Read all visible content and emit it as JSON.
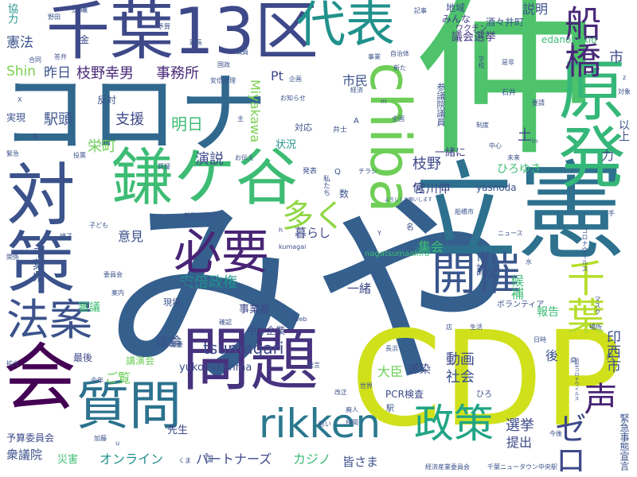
{
  "words": [
    {
      "text": "仲",
      "color": "#4ec36b",
      "weight": 99
    },
    {
      "text": "みや",
      "color": "#355f8d",
      "weight": 100
    },
    {
      "text": "CDP",
      "color": "#d0e11c",
      "weight": 90
    },
    {
      "text": "立憲",
      "color": "#2d718e",
      "weight": 92
    },
    {
      "text": "コロナ",
      "color": "#31688e",
      "weight": 88
    },
    {
      "text": "千葉13区",
      "color": "#3e4989",
      "weight": 80
    },
    {
      "text": "対策",
      "color": "#3b528b",
      "weight": 78
    },
    {
      "text": "鎌ケ谷",
      "color": "#3dbc74",
      "weight": 76
    },
    {
      "text": "代表",
      "color": "#21918c",
      "weight": 70
    },
    {
      "text": "原発",
      "color": "#35b779",
      "weight": 72
    },
    {
      "text": "会",
      "color": "#440154",
      "weight": 74
    },
    {
      "text": "問題",
      "color": "#46327e",
      "weight": 72
    },
    {
      "text": "質問",
      "color": "#2c728e",
      "weight": 66
    },
    {
      "text": "chiba",
      "color": "#6ece58",
      "weight": 62
    },
    {
      "text": "必要",
      "color": "#482475",
      "weight": 60
    },
    {
      "text": "開催",
      "color": "#39568c",
      "weight": 58
    },
    {
      "text": "法案",
      "color": "#3b528b",
      "weight": 54
    },
    {
      "text": "rikken",
      "color": "#2a788e",
      "weight": 54
    },
    {
      "text": "政策",
      "color": "#21a585",
      "weight": 52
    },
    {
      "text": "船橋",
      "color": "#482878",
      "weight": 46
    },
    {
      "text": "千葉",
      "color": "#b5de2b",
      "weight": 48
    },
    {
      "text": "多く",
      "color": "#8fd744",
      "weight": 44
    },
    {
      "text": "声",
      "color": "#482475",
      "weight": 44
    },
    {
      "text": "ゼロ",
      "color": "#3e4989",
      "weight": 40
    },
    {
      "text": "議会選挙",
      "color": "#453781",
      "weight": 14
    },
    {
      "text": "みんな",
      "color": "#424086",
      "weight": 12
    },
    {
      "text": "地域",
      "color": "#3b528b",
      "weight": 12
    },
    {
      "text": "酒々井町",
      "color": "#3b528b",
      "weight": 12
    },
    {
      "text": "edanoyukio",
      "color": "#3dbc74",
      "weight": 12
    },
    {
      "text": "ワクチン",
      "color": "#443a83",
      "weight": 10
    },
    {
      "text": "説明",
      "color": "#3b528b",
      "weight": 14
    },
    {
      "text": "市",
      "color": "#3e4989",
      "weight": 16
    },
    {
      "text": "憲法",
      "color": "#3b528b",
      "weight": 16
    },
    {
      "text": "協力",
      "color": "#21918c",
      "weight": 12
    },
    {
      "text": "Shin",
      "color": "#7ad151",
      "weight": 16
    },
    {
      "text": "昨日",
      "color": "#3b528b",
      "weight": 16
    },
    {
      "text": "枝野幸男",
      "color": "#482878",
      "weight": 18
    },
    {
      "text": "事務所",
      "color": "#482878",
      "weight": 18
    },
    {
      "text": "Pt",
      "color": "#3e4989",
      "weight": 14
    },
    {
      "text": "市民",
      "color": "#3b528b",
      "weight": 14
    },
    {
      "text": "Miyakawa",
      "color": "#7ad151",
      "weight": 16
    },
    {
      "text": "反対",
      "color": "#3b528b",
      "weight": 12
    },
    {
      "text": "駅頭",
      "color": "#3b528b",
      "weight": 18
    },
    {
      "text": "支援",
      "color": "#3e4989",
      "weight": 18
    },
    {
      "text": "明日",
      "color": "#3dbc74",
      "weight": 18
    },
    {
      "text": "栄町",
      "color": "#6ece58",
      "weight": 18
    },
    {
      "text": "演説",
      "color": "#3e4989",
      "weight": 18
    },
    {
      "text": "状況",
      "color": "#21918c",
      "weight": 12
    },
    {
      "text": "枝野",
      "color": "#3e4989",
      "weight": 18
    },
    {
      "text": "一緒に",
      "color": "#424086",
      "weight": 12
    },
    {
      "text": "宮川伸",
      "color": "#3e4989",
      "weight": 14
    },
    {
      "text": "yasnoda",
      "color": "#3b528b",
      "weight": 12
    },
    {
      "text": "ひろゆき",
      "color": "#3dbc74",
      "weight": 12
    },
    {
      "text": "以上",
      "color": "#3b528b",
      "weight": 12
    },
    {
      "text": "土",
      "color": "#3e4989",
      "weight": 18
    },
    {
      "text": "力",
      "color": "#3b528b",
      "weight": 16
    },
    {
      "text": "意見",
      "color": "#3b528b",
      "weight": 14
    },
    {
      "text": "安倍政権",
      "color": "#21918c",
      "weight": 18
    },
    {
      "text": "暮らし",
      "color": "#3e4989",
      "weight": 14
    },
    {
      "text": "集会",
      "color": "#3dbc74",
      "weight": 16
    },
    {
      "text": "市議",
      "color": "#3b528b",
      "weight": 14
    },
    {
      "text": "印西市",
      "color": "#3b528b",
      "weight": 18
    },
    {
      "text": "候補",
      "color": "#3dbc74",
      "weight": 16
    },
    {
      "text": "報告",
      "color": "#3dbc74",
      "weight": 14
    },
    {
      "text": "千葉県",
      "color": "#3b528b",
      "weight": 14
    },
    {
      "text": "一緒",
      "color": "#3e4989",
      "weight": 14
    },
    {
      "text": "事業者",
      "color": "#3e4989",
      "weight": 12
    },
    {
      "text": "中小企業",
      "color": "#3e4989",
      "weight": 12
    },
    {
      "text": "tsumagari",
      "color": "#3e4989",
      "weight": 18
    },
    {
      "text": "議論",
      "color": "#3b528b",
      "weight": 14
    },
    {
      "text": "審議",
      "color": "#3dbc74",
      "weight": 14
    },
    {
      "text": "最後",
      "color": "#3e4989",
      "weight": 12
    },
    {
      "text": "講演会",
      "color": "#6ece58",
      "weight": 12
    },
    {
      "text": "ご覧",
      "color": "#6ece58",
      "weight": 14
    },
    {
      "text": "yukorikkenma",
      "color": "#3e4989",
      "weight": 12
    },
    {
      "text": "大臣",
      "color": "#6ece58",
      "weight": 16
    },
    {
      "text": "PCR検査",
      "color": "#3e4989",
      "weight": 12
    },
    {
      "text": "動画",
      "color": "#3e4989",
      "weight": 18
    },
    {
      "text": "社会",
      "color": "#3b528b",
      "weight": 16
    },
    {
      "text": "感染",
      "color": "#3e4989",
      "weight": 14
    },
    {
      "text": "後",
      "color": "#3b528b",
      "weight": 14
    },
    {
      "text": "選挙",
      "color": "#3e4989",
      "weight": 16
    },
    {
      "text": "提出",
      "color": "#3e4989",
      "weight": 16
    },
    {
      "text": "オンライン",
      "color": "#21918c",
      "weight": 16
    },
    {
      "text": "パートナーズ",
      "color": "#3e4989",
      "weight": 16
    },
    {
      "text": "カジノ",
      "color": "#3dbc74",
      "weight": 16
    },
    {
      "text": "皆さま",
      "color": "#3b528b",
      "weight": 14
    },
    {
      "text": "衆議院",
      "color": "#3b528b",
      "weight": 14
    },
    {
      "text": "予算委員会",
      "color": "#3e4989",
      "weight": 12
    },
    {
      "text": "先生",
      "color": "#3e4989",
      "weight": 12
    },
    {
      "text": "災害",
      "color": "#3dbc74",
      "weight": 12
    },
    {
      "text": "緊急事態宣言",
      "color": "#3b528b",
      "weight": 12
    },
    {
      "text": "金",
      "color": "#3e4989",
      "weight": 12
    },
    {
      "text": "抗議",
      "color": "#3b528b",
      "weight": 10
    },
    {
      "text": "記事",
      "color": "#3b528b",
      "weight": 8
    },
    {
      "text": "野田",
      "color": "#3b528b",
      "weight": 8
    },
    {
      "text": "延長",
      "color": "#3b528b",
      "weight": 8
    },
    {
      "text": "職員",
      "color": "#3b528b",
      "weight": 8
    },
    {
      "text": "国政",
      "color": "#3b528b",
      "weight": 8
    },
    {
      "text": "合同",
      "color": "#3b528b",
      "weight": 8
    },
    {
      "text": "事業",
      "color": "#3b528b",
      "weight": 8
    },
    {
      "text": "自治体",
      "color": "#3b528b",
      "weight": 8
    },
    {
      "text": "新た",
      "color": "#3b528b",
      "weight": 8
    },
    {
      "text": "学校",
      "color": "#3b528b",
      "weight": 8
    },
    {
      "text": "是非",
      "color": "#3b528b",
      "weight": 8
    },
    {
      "text": "答弁",
      "color": "#3b528b",
      "weight": 8
    },
    {
      "text": "予算",
      "color": "#3b528b",
      "weight": 8
    },
    {
      "text": "安倍総理",
      "color": "#3b528b",
      "weight": 8
    },
    {
      "text": "企画",
      "color": "#3b528b",
      "weight": 8
    },
    {
      "text": "経済",
      "color": "#3b528b",
      "weight": 8
    },
    {
      "text": "お知らせ",
      "color": "#3b528b",
      "weight": 8
    },
    {
      "text": "石井",
      "color": "#3b528b",
      "weight": 8
    },
    {
      "text": "要請",
      "color": "#3b528b",
      "weight": 8
    },
    {
      "text": "対象",
      "color": "#3b528b",
      "weight": 8
    },
    {
      "text": "実現",
      "color": "#3b528b",
      "weight": 10
    },
    {
      "text": "主",
      "color": "#3b528b",
      "weight": 8
    },
    {
      "text": "対応",
      "color": "#3b528b",
      "weight": 10
    },
    {
      "text": "参議院議員",
      "color": "#3b528b",
      "weight": 10
    },
    {
      "text": "全国",
      "color": "#3b528b",
      "weight": 8
    },
    {
      "text": "投票",
      "color": "#3b528b",
      "weight": 8
    },
    {
      "text": "質疑",
      "color": "#3b528b",
      "weight": 8
    },
    {
      "text": "お伝え",
      "color": "#3b528b",
      "weight": 8
    },
    {
      "text": "弁士",
      "color": "#3b528b",
      "weight": 8
    },
    {
      "text": "中心",
      "color": "#3b528b",
      "weight": 8
    },
    {
      "text": "未来",
      "color": "#3b528b",
      "weight": 8
    },
    {
      "text": "発表",
      "color": "#3b528b",
      "weight": 8
    },
    {
      "text": "チラシ",
      "color": "#3b528b",
      "weight": 8
    },
    {
      "text": "私たち",
      "color": "#3b528b",
      "weight": 8
    },
    {
      "text": "新型コロナ",
      "color": "#3b528b",
      "weight": 8
    },
    {
      "text": "よろしくお願いします",
      "color": "#3b528b",
      "weight": 6
    },
    {
      "text": "船橋市",
      "color": "#3b528b",
      "weight": 8
    },
    {
      "text": "子ども",
      "color": "#3b528b",
      "weight": 8
    },
    {
      "text": "ニュース",
      "color": "#3b528b",
      "weight": 8
    },
    {
      "text": "コロナウイルス",
      "color": "#3b528b",
      "weight": 8
    },
    {
      "text": "様子",
      "color": "#3b528b",
      "weight": 8
    },
    {
      "text": "関係",
      "color": "#3b528b",
      "weight": 8
    },
    {
      "text": "委員会",
      "color": "#3b528b",
      "weight": 8
    },
    {
      "text": "案内",
      "color": "#3b528b",
      "weight": 8
    },
    {
      "text": "報告会",
      "color": "#3b528b",
      "weight": 6
    },
    {
      "text": "命",
      "color": "#3e4989",
      "weight": 12
    },
    {
      "text": "現場",
      "color": "#3b528b",
      "weight": 10
    },
    {
      "text": "確認",
      "color": "#3b528b",
      "weight": 8
    },
    {
      "text": "kumagai",
      "color": "#3b528b",
      "weight": 8
    },
    {
      "text": "nagatsumaakira",
      "color": "#3dbc74",
      "weight": 10
    },
    {
      "text": "ボランティア",
      "color": "#3b528b",
      "weight": 10
    },
    {
      "text": "マスク",
      "color": "#3b528b",
      "weight": 8
    },
    {
      "text": "場所",
      "color": "#3b528b",
      "weight": 8
    },
    {
      "text": "生活",
      "color": "#3b528b",
      "weight": 8
    },
    {
      "text": "店",
      "color": "#3b528b",
      "weight": 8
    },
    {
      "text": "長浜",
      "color": "#3b528b",
      "weight": 8
    },
    {
      "text": "日時",
      "color": "#3b528b",
      "weight": 8
    },
    {
      "text": "円",
      "color": "#3b528b",
      "weight": 8
    },
    {
      "text": "新型コロナウイルス",
      "color": "#3b528b",
      "weight": 6
    },
    {
      "text": "重要",
      "color": "#3b528b",
      "weight": 8
    },
    {
      "text": "今年",
      "color": "#3b528b",
      "weight": 8
    },
    {
      "text": "発言",
      "color": "#3b528b",
      "weight": 8
    },
    {
      "text": "世界",
      "color": "#3b528b",
      "weight": 8
    },
    {
      "text": "改正",
      "color": "#3b528b",
      "weight": 8
    },
    {
      "text": "廃人",
      "color": "#3b528b",
      "weight": 8
    },
    {
      "text": "仲間",
      "color": "#3b528b",
      "weight": 8
    },
    {
      "text": "思い",
      "color": "#3b528b",
      "weight": 8
    },
    {
      "text": "今後",
      "color": "#3b528b",
      "weight": 8
    },
    {
      "text": "県",
      "color": "#3b528b",
      "weight": 8
    },
    {
      "text": "駅",
      "color": "#3b528b",
      "weight": 10
    },
    {
      "text": "ひろ",
      "color": "#3b528b",
      "weight": 10
    },
    {
      "text": "経済産業委員会",
      "color": "#3b528b",
      "weight": 8
    },
    {
      "text": "千葉ニュータウン中央駅",
      "color": "#3b528b",
      "weight": 8
    },
    {
      "text": "加藤",
      "color": "#3b528b",
      "weight": 8
    },
    {
      "text": "くま",
      "color": "#3b528b",
      "weight": 8
    },
    {
      "text": "国",
      "color": "#3b528b",
      "weight": 10
    },
    {
      "text": "何",
      "color": "#3e4989",
      "weight": 14
    },
    {
      "text": "数",
      "color": "#3b528b",
      "weight": 12
    },
    {
      "text": "名",
      "color": "#3b528b",
      "weight": 10
    },
    {
      "text": "緊急",
      "color": "#3b528b",
      "weight": 8
    },
    {
      "text": "事",
      "color": "#3b528b",
      "weight": 8
    },
    {
      "text": "制度",
      "color": "#3b528b",
      "weight": 8
    },
    {
      "text": "拡大",
      "color": "#3b528b",
      "weight": 8
    },
    {
      "text": "手",
      "color": "#3b528b",
      "weight": 8
    },
    {
      "text": "水",
      "color": "#3b528b",
      "weight": 8
    },
    {
      "text": "X",
      "color": "#3b528b",
      "weight": 8
    },
    {
      "text": "Y",
      "color": "#3b528b",
      "weight": 8
    },
    {
      "text": "A",
      "color": "#3b528b",
      "weight": 10
    },
    {
      "text": "Q",
      "color": "#3b528b",
      "weight": 10
    },
    {
      "text": "h",
      "color": "#3b528b",
      "weight": 8
    },
    {
      "text": "z",
      "color": "#3b528b",
      "weight": 8
    },
    {
      "text": "m",
      "color": "#3b528b",
      "weight": 8
    },
    {
      "text": "u",
      "color": "#3b528b",
      "weight": 8
    },
    {
      "text": "in",
      "color": "#3b528b",
      "weight": 8
    },
    {
      "text": "Web",
      "color": "#3b528b",
      "weight": 8
    }
  ]
}
